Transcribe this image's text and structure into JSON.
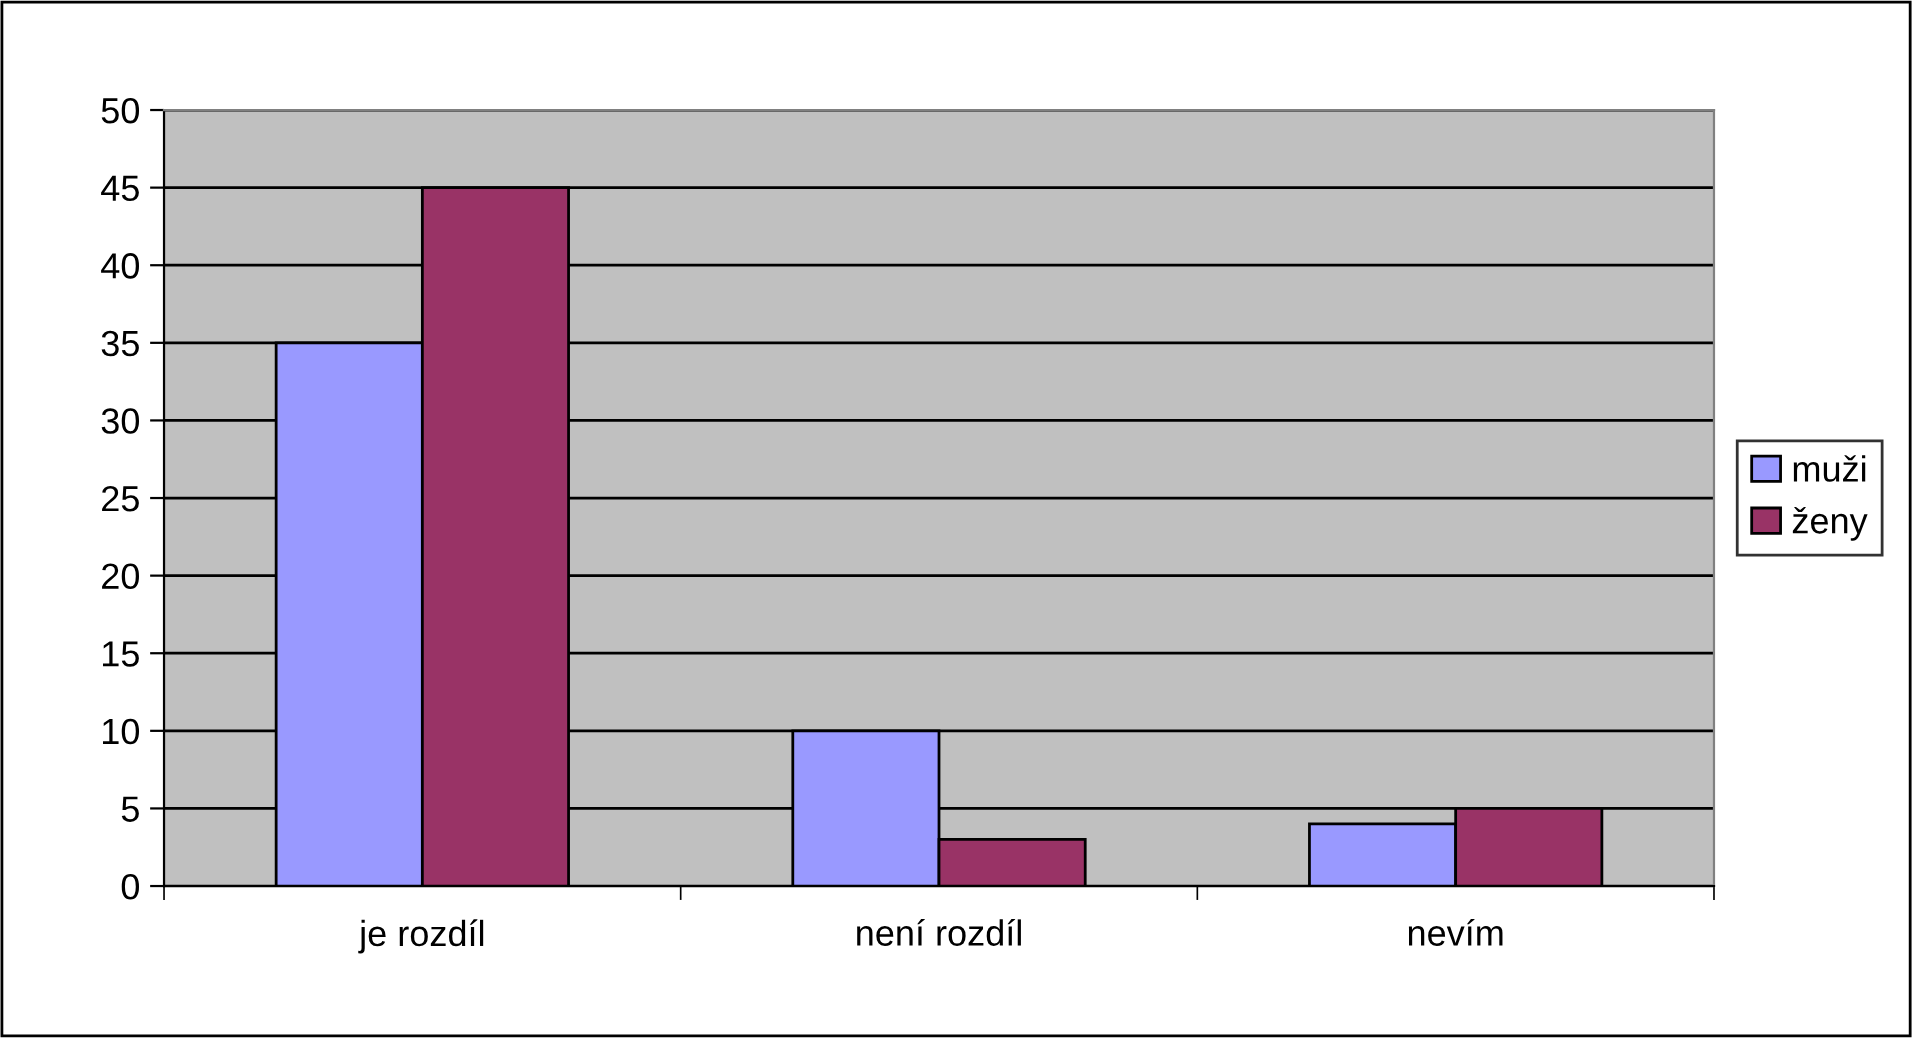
{
  "chart_data": {
    "type": "bar",
    "categories": [
      "je rozdíl",
      "není rozdíl",
      "nevím"
    ],
    "series": [
      {
        "name": "muži",
        "color": "#9999ff",
        "values": [
          35,
          10,
          4
        ]
      },
      {
        "name": "ženy",
        "color": "#993366",
        "values": [
          45,
          3,
          5
        ]
      }
    ],
    "ylim": [
      0,
      50
    ],
    "yticks": [
      0,
      5,
      10,
      15,
      20,
      25,
      30,
      35,
      40,
      45,
      50
    ],
    "grid": "y",
    "legend": "right"
  }
}
